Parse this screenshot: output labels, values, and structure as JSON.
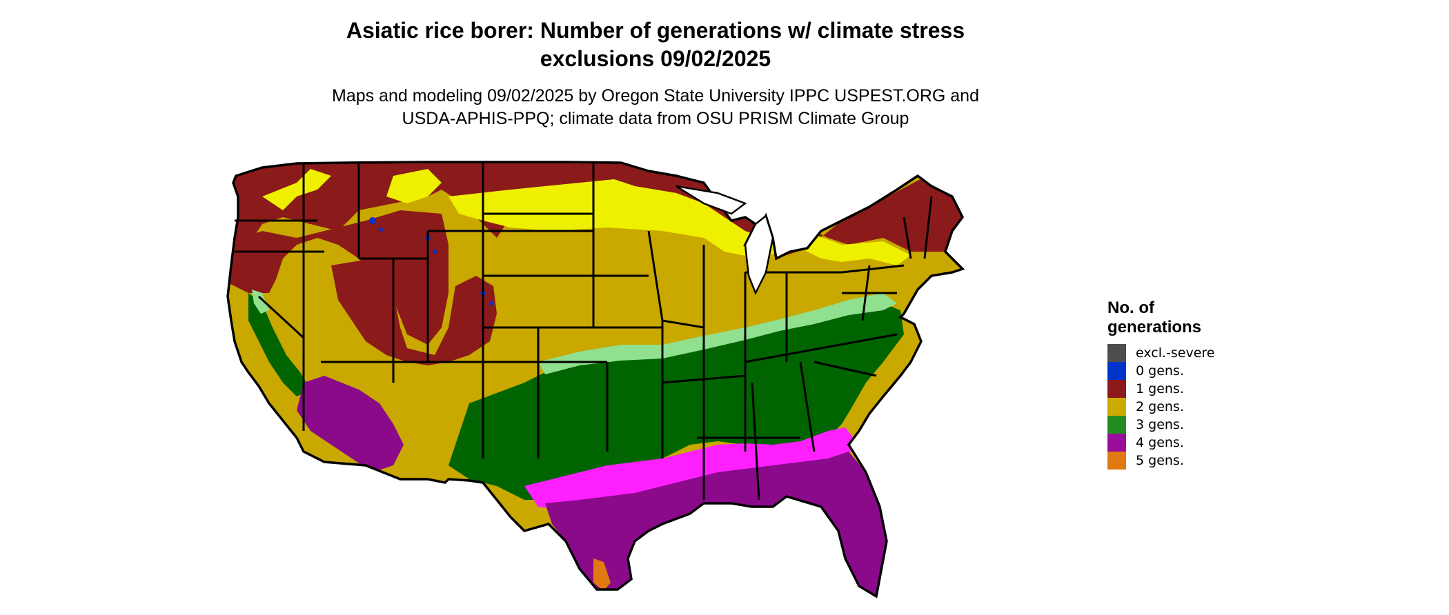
{
  "title": {
    "line1": "Asiatic rice borer: Number of generations w/ climate stress",
    "line2": "exclusions 09/02/2025"
  },
  "subtitle": {
    "line1": "Maps and modeling 09/02/2025 by Oregon State University IPPC USPEST.ORG and",
    "line2": "USDA-APHIS-PPQ; climate data from OSU PRISM Climate Group"
  },
  "legend": {
    "title_line1": "No. of",
    "title_line2": "generations",
    "items": [
      {
        "label": "excl.-severe",
        "color": "#4d4d4d"
      },
      {
        "label": "0 gens.",
        "color": "#0033cc"
      },
      {
        "label": "1 gens.",
        "color": "#8b1a1a"
      },
      {
        "label": "2 gens.",
        "color": "#cdaa00"
      },
      {
        "label": "3 gens.",
        "color": "#228b22"
      },
      {
        "label": "4 gens.",
        "color": "#9a0c9a"
      },
      {
        "label": "5 gens.",
        "color": "#e07a10"
      }
    ]
  },
  "map_colors": {
    "gen1": "#8b1a1a",
    "gen2": "#c9a800",
    "gen2_light": "#eef000",
    "gen3": "#006400",
    "gen3_light": "#90e090",
    "gen4": "#8a0a8a",
    "gen4_light": "#ff20ff",
    "gen5": "#e07a10",
    "gen0": "#0033cc",
    "borders": "#000000"
  }
}
